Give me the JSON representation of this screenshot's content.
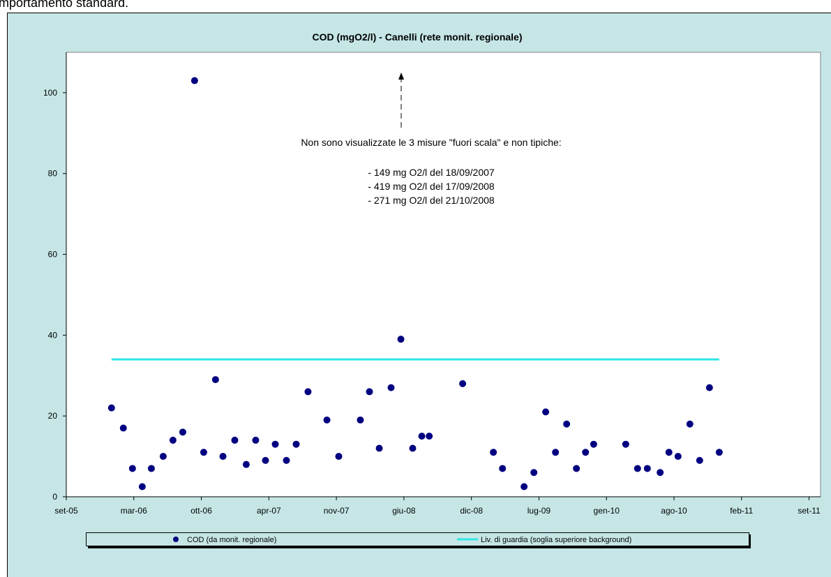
{
  "page_text": "mportamento standard.",
  "chart_data": {
    "type": "scatter",
    "title": "COD (mgO2/l) - Canelli (rete monit. regionale)",
    "annotation": [
      "Non sono visualizzate le 3 misure \"fuori scala\" e non tipiche:",
      "- 149 mg O2/l del 18/09/2007",
      "- 419 mg O2/l del 17/09/2008",
      "- 271 mg O2/l del 21/10/2008"
    ],
    "xlim": [
      38596,
      40830
    ],
    "xticks": [
      {
        "value": 38596,
        "label": "set-05"
      },
      {
        "value": 38796,
        "label": "mar-06"
      },
      {
        "value": 38996,
        "label": "ott-06"
      },
      {
        "value": 39196,
        "label": "apr-07"
      },
      {
        "value": 39396,
        "label": "nov-07"
      },
      {
        "value": 39596,
        "label": "giu-08"
      },
      {
        "value": 39796,
        "label": "dic-08"
      },
      {
        "value": 39996,
        "label": "lug-09"
      },
      {
        "value": 40196,
        "label": "gen-10"
      },
      {
        "value": 40396,
        "label": "ago-10"
      },
      {
        "value": 40596,
        "label": "feb-11"
      },
      {
        "value": 40796,
        "label": "set-11"
      }
    ],
    "ylim": [
      0,
      110
    ],
    "yticks": [
      0,
      20,
      40,
      60,
      80,
      100
    ],
    "grid": false,
    "legend": "bottom",
    "series": [
      {
        "name": "COD (da monit. regionale)",
        "color": "#000080",
        "kind": "points",
        "x": [
          38730,
          38765,
          38792,
          38821,
          38848,
          38883,
          38912,
          38941,
          38976,
          39003,
          39038,
          39060,
          39095,
          39129,
          39157,
          39186,
          39215,
          39248,
          39277,
          39312,
          39368,
          39403,
          39467,
          39494,
          39523,
          39558,
          39587,
          39622,
          39649,
          39671,
          39770,
          39861,
          39888,
          39952,
          39981,
          40016,
          40045,
          40078,
          40107,
          40134,
          40158,
          40253,
          40288,
          40317,
          40355,
          40381,
          40408,
          40443,
          40472,
          40501,
          40530
        ],
        "values": [
          22,
          17,
          7,
          2.5,
          7,
          10,
          14,
          16,
          103,
          11,
          29,
          10,
          14,
          8,
          14,
          9,
          13,
          9,
          13,
          26,
          19,
          10,
          19,
          26,
          12,
          27,
          39,
          12,
          15,
          15,
          28,
          11,
          7,
          2.5,
          6,
          21,
          11,
          18,
          7,
          11,
          13,
          13,
          7,
          7,
          6,
          11,
          10,
          18,
          9,
          27,
          11
        ]
      },
      {
        "name": "Liv. di guardia (soglia superiore background)",
        "color": "#2ee6e6",
        "kind": "line",
        "x": [
          38730,
          40530
        ],
        "values": [
          34,
          34
        ]
      }
    ]
  }
}
